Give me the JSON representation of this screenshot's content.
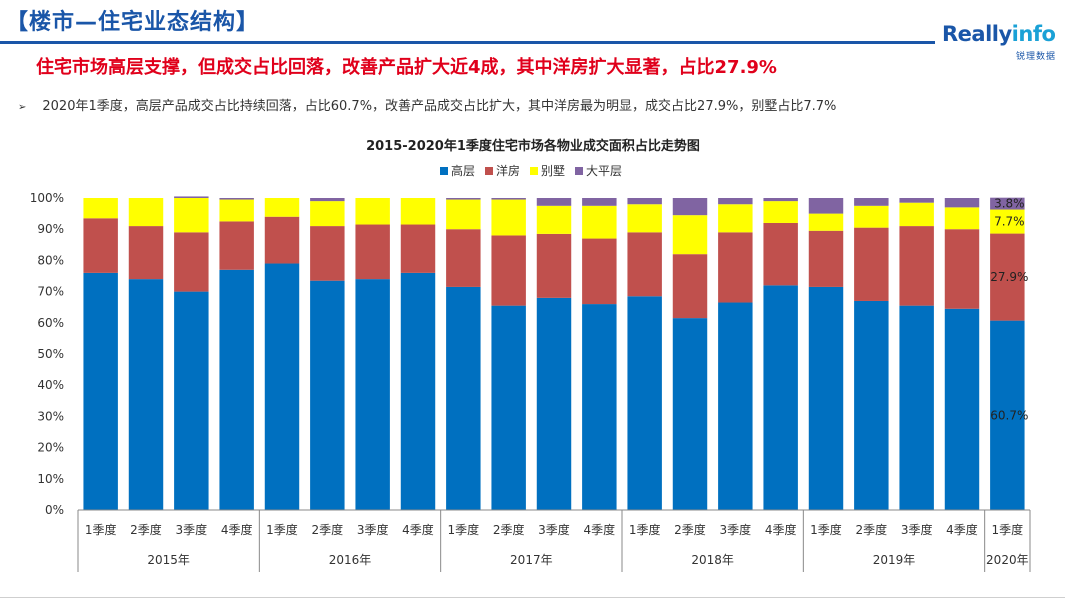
{
  "header": {
    "title": "【楼市—住宅业态结构】",
    "headline": "住宅市场高层支撑，但成交占比回落，改善产品扩大近4成，其中洋房扩大显著，占比27.9%",
    "bullet": "2020年1季度，高层产品成交占比持续回落，占比60.7%，改善产品成交占比扩大，其中洋房最为明显，成交占比27.9%，别墅占比7.7%",
    "bullet_icon": "arrow-bullet-icon"
  },
  "logo": {
    "main_a": "Really",
    "main_b": "info",
    "sub": "锐理数据"
  },
  "chart_data": {
    "type": "bar",
    "stacked": true,
    "title": "2015-2020年1季度住宅市场各物业成交面积占比走势图",
    "legend_position": "top",
    "categories": [
      "1季度",
      "2季度",
      "3季度",
      "4季度",
      "1季度",
      "2季度",
      "3季度",
      "4季度",
      "1季度",
      "2季度",
      "3季度",
      "4季度",
      "1季度",
      "2季度",
      "3季度",
      "4季度",
      "1季度",
      "2季度",
      "3季度",
      "4季度",
      "1季度"
    ],
    "groups": [
      {
        "label": "2015年",
        "count": 4
      },
      {
        "label": "2016年",
        "count": 4
      },
      {
        "label": "2017年",
        "count": 4
      },
      {
        "label": "2018年",
        "count": 4
      },
      {
        "label": "2019年",
        "count": 4
      },
      {
        "label": "2020年",
        "count": 1
      }
    ],
    "ylim": [
      0,
      100
    ],
    "yticks": [
      "0%",
      "10%",
      "20%",
      "30%",
      "40%",
      "50%",
      "60%",
      "70%",
      "80%",
      "90%",
      "100%"
    ],
    "series": [
      {
        "name": "高层",
        "color": "#0070c0",
        "values": [
          76,
          74,
          70,
          77,
          79,
          73.5,
          74,
          76,
          71.5,
          65.5,
          68,
          66,
          68.5,
          61.5,
          66.5,
          72,
          71.5,
          67,
          65.5,
          64.5,
          60.7
        ]
      },
      {
        "name": "洋房",
        "color": "#c0504d",
        "values": [
          17.5,
          17,
          19,
          15.5,
          15,
          17.5,
          17.5,
          15.5,
          18.5,
          22.5,
          20.5,
          21,
          20.5,
          20.5,
          22.5,
          20,
          18,
          23.5,
          25.5,
          25.5,
          27.9
        ]
      },
      {
        "name": "别墅",
        "color": "#ffff00",
        "values": [
          6.5,
          9,
          11,
          7,
          6,
          8,
          8.5,
          8.5,
          9.5,
          11.5,
          9,
          10.5,
          9,
          12.5,
          9,
          7,
          5.5,
          7,
          7.5,
          7,
          7.7
        ]
      },
      {
        "name": "大平层",
        "color": "#8064a2",
        "values": [
          0,
          0,
          0.5,
          0.5,
          0,
          1,
          0,
          0,
          0.5,
          0.5,
          2.5,
          2.5,
          2,
          5.5,
          2,
          1,
          5,
          2.5,
          1.5,
          3,
          3.8
        ]
      }
    ],
    "data_labels": [
      {
        "series": 3,
        "index": 20,
        "text": "3.8%"
      },
      {
        "series": 2,
        "index": 20,
        "text": "7.7%"
      },
      {
        "series": 1,
        "index": 20,
        "text": "27.9%"
      },
      {
        "series": 0,
        "index": 20,
        "text": "60.7%"
      }
    ]
  }
}
